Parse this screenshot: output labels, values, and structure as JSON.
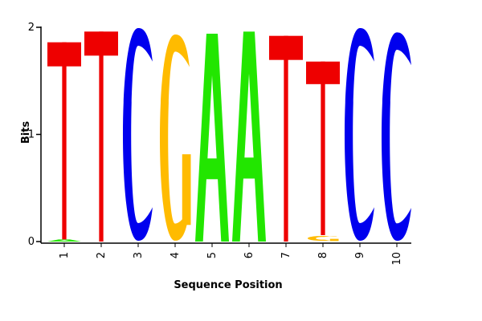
{
  "chart_data": {
    "type": "sequence-logo",
    "xlabel": "Sequence Position",
    "ylabel": "Bits",
    "ylim": [
      0,
      2
    ],
    "yticks": [
      0,
      1,
      2
    ],
    "positions": [
      "1",
      "2",
      "3",
      "4",
      "5",
      "6",
      "7",
      "8",
      "9",
      "10"
    ],
    "colors": {
      "A": "#22e600",
      "C": "#0000ee",
      "G": "#ffbb00",
      "T": "#ee0000"
    },
    "stacks": [
      [
        {
          "letter": "A",
          "bits": 0.02
        },
        {
          "letter": "T",
          "bits": 1.84
        }
      ],
      [
        {
          "letter": "T",
          "bits": 1.96
        }
      ],
      [
        {
          "letter": "C",
          "bits": 2.0
        }
      ],
      [
        {
          "letter": "G",
          "bits": 1.94
        }
      ],
      [
        {
          "letter": "A",
          "bits": 1.94
        }
      ],
      [
        {
          "letter": "A",
          "bits": 1.96
        }
      ],
      [
        {
          "letter": "T",
          "bits": 1.92
        }
      ],
      [
        {
          "letter": "G",
          "bits": 0.06
        },
        {
          "letter": "T",
          "bits": 1.62
        }
      ],
      [
        {
          "letter": "C",
          "bits": 2.0
        }
      ],
      [
        {
          "letter": "C",
          "bits": 1.96
        }
      ]
    ]
  }
}
